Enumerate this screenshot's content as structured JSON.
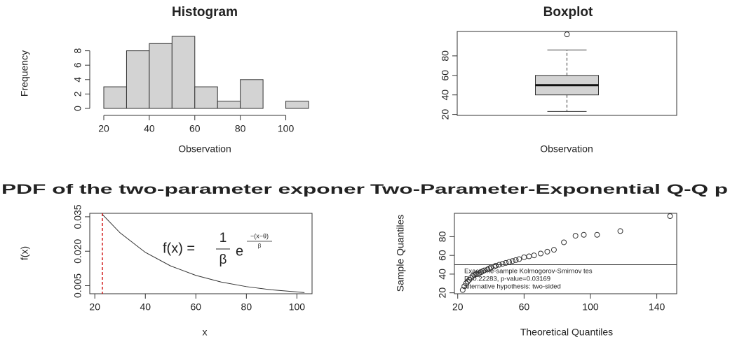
{
  "chart_data": [
    {
      "type": "histogram",
      "title": "Histogram",
      "x_label": "Observation",
      "y_label": "Frequency",
      "bins": [
        20,
        30,
        40,
        50,
        60,
        70,
        80,
        90,
        100,
        110
      ],
      "values": [
        3,
        8,
        9,
        10,
        3,
        1,
        4,
        0,
        1
      ],
      "color": "#d3d3d3",
      "xlim": [
        20,
        110
      ],
      "ylim": [
        0,
        10
      ],
      "xticks": [
        20,
        40,
        60,
        80,
        100
      ],
      "yticks": [
        0,
        2,
        4,
        6,
        8
      ]
    },
    {
      "type": "box",
      "title": "Boxplot",
      "x_label": "Observation",
      "values": {
        "whisker_low": 23,
        "q1": 40,
        "median": 50,
        "q3": 60,
        "whisker_high": 86,
        "outliers": [
          102
        ]
      },
      "color": "#d3d3d3",
      "ylim": [
        19,
        105
      ],
      "yticks": [
        20,
        40,
        60,
        80
      ]
    },
    {
      "type": "line",
      "title": "PDF of the two-parameter exponer",
      "x_label": "x",
      "y_label": "f(x)",
      "x": [
        23,
        30,
        40,
        50,
        60,
        70,
        80,
        90,
        100,
        103
      ],
      "values": [
        0.036,
        0.028,
        0.0195,
        0.0136,
        0.0095,
        0.0066,
        0.0046,
        0.0032,
        0.0023,
        0.002
      ],
      "color": "#333333",
      "vline": 23,
      "vline_color": "#cc0000",
      "formula": {
        "lhs": "f(x) =",
        "numerator": "1",
        "denominator": "β",
        "base": "e",
        "exponent_numerator": "−(x−θ)",
        "exponent_denominator": "β"
      },
      "xlim": [
        18,
        106
      ],
      "ylim": [
        0.0015,
        0.0365
      ],
      "xticks": [
        20,
        40,
        60,
        80,
        100
      ],
      "yticks": [
        0.005,
        {
          "value": 0.02,
          "label": "0.020"
        },
        0.035
      ]
    },
    {
      "type": "scatter",
      "title": "Two-Parameter-Exponential Q-Q p",
      "x_label": "Theoretical Quantiles",
      "y_label": "Sample Quantiles",
      "x": [
        23,
        24,
        25,
        26,
        27,
        28,
        29,
        30,
        31,
        32,
        33,
        34,
        35,
        36,
        38,
        39,
        40,
        42,
        43,
        45,
        47,
        49,
        51,
        53,
        55,
        57,
        60,
        63,
        66,
        70,
        74,
        78,
        84,
        91,
        96,
        104,
        118,
        148
      ],
      "values": [
        23,
        27,
        30,
        32,
        34,
        36,
        38,
        39,
        40,
        40,
        41,
        42,
        43,
        44,
        45,
        46,
        47,
        48,
        49,
        50,
        51,
        52,
        53,
        54,
        55,
        56,
        58,
        59,
        60,
        62,
        64,
        66,
        74,
        81,
        82,
        82,
        86,
        102
      ],
      "hline": 50,
      "legend": [
        "Exact one-sample Kolmogorov-Smirnov tes",
        "D=0.22283, p-value=0.03169",
        "alternative hypothesis: two-sided"
      ],
      "xlim": [
        18,
        152
      ],
      "ylim": [
        19,
        105
      ],
      "xticks": [
        20,
        60,
        100,
        140
      ],
      "yticks": [
        20,
        40,
        60,
        80
      ]
    }
  ]
}
